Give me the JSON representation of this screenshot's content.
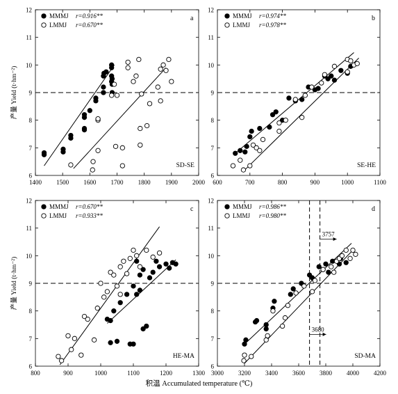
{
  "x_axis_title": "积温 Accumulated temperature (℃)",
  "chart_data": [
    {
      "type": "scatter",
      "panel": "a",
      "region": "SD-SE",
      "ylabel": "产量 Yield (t·hm⁻²)",
      "xlim": [
        1400,
        2000
      ],
      "ylim": [
        6,
        12
      ],
      "x_ticks": [
        "1400",
        "1500",
        "1600",
        "1700",
        "1800",
        "1900",
        "2000"
      ],
      "y_ticks": [
        "6",
        "7",
        "8",
        "9",
        "10",
        "11",
        "12"
      ],
      "reference_y": 9,
      "legend": [
        {
          "name": "MMMJ",
          "r_label": "r=0.916**",
          "marker": "filled"
        },
        {
          "name": "LMMJ",
          "r_label": "r=0.670**",
          "marker": "open"
        }
      ],
      "series": [
        {
          "name": "MMMJ",
          "marker": "filled",
          "points": [
            [
              1432,
              6.75
            ],
            [
              1432,
              6.82
            ],
            [
              1502,
              6.85
            ],
            [
              1502,
              6.95
            ],
            [
              1530,
              7.35
            ],
            [
              1530,
              7.45
            ],
            [
              1580,
              7.65
            ],
            [
              1580,
              7.7
            ],
            [
              1580,
              8.1
            ],
            [
              1580,
              8.2
            ],
            [
              1600,
              8.35
            ],
            [
              1622,
              8.7
            ],
            [
              1622,
              8.8
            ],
            [
              1650,
              9.0
            ],
            [
              1650,
              9.2
            ],
            [
              1650,
              9.6
            ],
            [
              1652,
              9.7
            ],
            [
              1660,
              9.75
            ],
            [
              1680,
              9.4
            ],
            [
              1680,
              9.6
            ],
            [
              1680,
              9.9
            ],
            [
              1680,
              10.0
            ],
            [
              1682,
              9.3
            ],
            [
              1682,
              9.0
            ],
            [
              1682,
              9.5
            ]
          ],
          "fit": [
            [
              1432,
              6.35
            ],
            [
              1690,
              10.0
            ]
          ]
        },
        {
          "name": "LMMJ",
          "marker": "open",
          "points": [
            [
              1530,
              6.38
            ],
            [
              1610,
              6.2
            ],
            [
              1612,
              6.5
            ],
            [
              1630,
              6.9
            ],
            [
              1630,
              8.0
            ],
            [
              1630,
              8.05
            ],
            [
              1680,
              8.9
            ],
            [
              1690,
              9.3
            ],
            [
              1695,
              7.05
            ],
            [
              1700,
              8.9
            ],
            [
              1720,
              6.35
            ],
            [
              1720,
              7.0
            ],
            [
              1740,
              9.9
            ],
            [
              1740,
              10.1
            ],
            [
              1760,
              9.4
            ],
            [
              1770,
              9.6
            ],
            [
              1780,
              10.2
            ],
            [
              1785,
              7.1
            ],
            [
              1785,
              7.7
            ],
            [
              1790,
              8.95
            ],
            [
              1810,
              7.8
            ],
            [
              1820,
              8.6
            ],
            [
              1850,
              9.2
            ],
            [
              1860,
              9.85
            ],
            [
              1860,
              8.7
            ],
            [
              1870,
              10.0
            ],
            [
              1880,
              9.8
            ],
            [
              1890,
              10.2
            ],
            [
              1900,
              9.4
            ]
          ],
          "fit": [
            [
              1540,
              6.25
            ],
            [
              1880,
              9.9
            ]
          ]
        }
      ]
    },
    {
      "type": "scatter",
      "panel": "b",
      "region": "SE-HE",
      "xlim": [
        600,
        1100
      ],
      "ylim": [
        6,
        12
      ],
      "x_ticks": [
        "600",
        "700",
        "800",
        "900",
        "1000",
        "1100"
      ],
      "y_ticks": [
        "6",
        "7",
        "8",
        "9",
        "10",
        "11",
        "12"
      ],
      "reference_y": 9,
      "legend": [
        {
          "name": "MMMJ",
          "r_label": "r=0.974**",
          "marker": "filled"
        },
        {
          "name": "LMMJ",
          "r_label": "r=0.978**",
          "marker": "open"
        }
      ],
      "series": [
        {
          "name": "MMMJ",
          "marker": "filled",
          "points": [
            [
              655,
              6.8
            ],
            [
              670,
              6.9
            ],
            [
              685,
              6.85
            ],
            [
              690,
              7.05
            ],
            [
              700,
              7.4
            ],
            [
              705,
              7.6
            ],
            [
              730,
              7.7
            ],
            [
              760,
              7.75
            ],
            [
              770,
              8.2
            ],
            [
              780,
              8.3
            ],
            [
              800,
              8.0
            ],
            [
              820,
              8.8
            ],
            [
              840,
              8.7
            ],
            [
              860,
              8.75
            ],
            [
              880,
              9.2
            ],
            [
              900,
              9.1
            ],
            [
              910,
              9.15
            ],
            [
              930,
              9.6
            ],
            [
              940,
              9.5
            ],
            [
              950,
              9.6
            ],
            [
              960,
              9.45
            ],
            [
              980,
              9.8
            ],
            [
              1000,
              9.7
            ],
            [
              1010,
              9.95
            ]
          ],
          "fit": [
            [
              650,
              6.75
            ],
            [
              1020,
              10.45
            ]
          ]
        },
        {
          "name": "LMMJ",
          "marker": "open",
          "points": [
            [
              648,
              6.35
            ],
            [
              670,
              6.55
            ],
            [
              680,
              6.2
            ],
            [
              700,
              6.35
            ],
            [
              710,
              7.1
            ],
            [
              720,
              7.0
            ],
            [
              730,
              6.9
            ],
            [
              740,
              7.3
            ],
            [
              790,
              7.6
            ],
            [
              790,
              7.9
            ],
            [
              810,
              8.0
            ],
            [
              840,
              8.75
            ],
            [
              860,
              8.1
            ],
            [
              870,
              8.9
            ],
            [
              890,
              9.2
            ],
            [
              920,
              9.35
            ],
            [
              930,
              9.65
            ],
            [
              960,
              9.95
            ],
            [
              1000,
              10.2
            ],
            [
              1010,
              10.15
            ],
            [
              1020,
              10.0
            ],
            [
              1030,
              10.05
            ],
            [
              1000,
              9.75
            ]
          ],
          "fit": [
            [
              680,
              6.15
            ],
            [
              1035,
              10.25
            ]
          ]
        }
      ]
    },
    {
      "type": "scatter",
      "panel": "c",
      "region": "HE-MA",
      "ylabel": "产量 Yield (t·hm⁻²)",
      "xlim": [
        800,
        1300
      ],
      "ylim": [
        6,
        12
      ],
      "x_ticks": [
        "800",
        "900",
        "1000",
        "1100",
        "1200",
        "1300"
      ],
      "y_ticks": [
        "6",
        "7",
        "8",
        "9",
        "10",
        "11",
        "12"
      ],
      "reference_y": 9,
      "legend": [
        {
          "name": "MMMJ",
          "r_label": "r=0.670**",
          "marker": "filled"
        },
        {
          "name": "LMMJ",
          "r_label": "r=0.933**",
          "marker": "open"
        }
      ],
      "series": [
        {
          "name": "MMMJ",
          "marker": "filled",
          "points": [
            [
              1020,
              7.7
            ],
            [
              1030,
              7.65
            ],
            [
              1030,
              6.85
            ],
            [
              1040,
              8.0
            ],
            [
              1050,
              6.9
            ],
            [
              1060,
              8.3
            ],
            [
              1080,
              8.6
            ],
            [
              1090,
              6.8
            ],
            [
              1100,
              6.8
            ],
            [
              1100,
              8.9
            ],
            [
              1110,
              8.6
            ],
            [
              1120,
              8.75
            ],
            [
              1130,
              9.5
            ],
            [
              1130,
              7.35
            ],
            [
              1140,
              7.45
            ],
            [
              1150,
              9.2
            ],
            [
              1160,
              9.4
            ],
            [
              1170,
              9.8
            ],
            [
              1180,
              9.6
            ],
            [
              1200,
              9.7
            ],
            [
              1210,
              9.55
            ],
            [
              1220,
              9.75
            ],
            [
              1230,
              9.7
            ],
            [
              1110,
              9.8
            ],
            [
              1120,
              9.3
            ]
          ],
          "fit": [
            [
              1020,
              7.55
            ],
            [
              1230,
              9.85
            ]
          ]
        },
        {
          "name": "LMMJ",
          "marker": "open",
          "points": [
            [
              870,
              6.35
            ],
            [
              880,
              6.2
            ],
            [
              900,
              7.1
            ],
            [
              910,
              6.6
            ],
            [
              920,
              7.0
            ],
            [
              940,
              6.4
            ],
            [
              950,
              7.8
            ],
            [
              960,
              7.7
            ],
            [
              980,
              6.95
            ],
            [
              990,
              8.1
            ],
            [
              1000,
              9.0
            ],
            [
              1010,
              8.5
            ],
            [
              1020,
              8.7
            ],
            [
              1030,
              9.4
            ],
            [
              1040,
              9.3
            ],
            [
              1050,
              8.9
            ],
            [
              1060,
              9.6
            ],
            [
              1070,
              9.8
            ],
            [
              1080,
              9.35
            ],
            [
              1090,
              9.9
            ],
            [
              1100,
              10.2
            ],
            [
              1110,
              10.0
            ],
            [
              1120,
              9.6
            ],
            [
              1140,
              10.2
            ],
            [
              1160,
              9.95
            ],
            [
              1180,
              10.1
            ],
            [
              1060,
              8.6
            ]
          ],
          "fit": [
            [
              875,
              6.05
            ],
            [
              1180,
              11.05
            ]
          ]
        }
      ]
    },
    {
      "type": "scatter",
      "panel": "d",
      "region": "SD-MA",
      "xlim": [
        3000,
        4200
      ],
      "ylim": [
        6,
        12
      ],
      "x_ticks": [
        "3000",
        "3200",
        "3400",
        "3600",
        "3800",
        "4000",
        "4200"
      ],
      "y_ticks": [
        "6",
        "7",
        "8",
        "9",
        "10",
        "11",
        "12"
      ],
      "reference_y": 9,
      "legend": [
        {
          "name": "MMMJ",
          "r_label": "r=0.986**",
          "marker": "filled"
        },
        {
          "name": "LMMJ",
          "r_label": "r=0.980**",
          "marker": "open"
        }
      ],
      "threshold_lines": [
        {
          "label": "3757",
          "y_label": 10.6
        },
        {
          "label": "3680",
          "y_label": 7.15
        }
      ],
      "series": [
        {
          "name": "MMMJ",
          "marker": "filled",
          "points": [
            [
              3200,
              6.8
            ],
            [
              3210,
              6.95
            ],
            [
              3280,
              7.6
            ],
            [
              3290,
              7.65
            ],
            [
              3360,
              7.35
            ],
            [
              3360,
              7.5
            ],
            [
              3410,
              8.1
            ],
            [
              3420,
              8.35
            ],
            [
              3540,
              8.6
            ],
            [
              3560,
              8.8
            ],
            [
              3620,
              9.0
            ],
            [
              3680,
              9.3
            ],
            [
              3700,
              9.2
            ],
            [
              3750,
              9.6
            ],
            [
              3780,
              9.5
            ],
            [
              3800,
              9.7
            ],
            [
              3850,
              9.8
            ],
            [
              3900,
              9.7
            ],
            [
              3910,
              9.9
            ],
            [
              3950,
              9.75
            ],
            [
              3820,
              9.4
            ]
          ],
          "fit": [
            [
              3190,
              6.75
            ],
            [
              3990,
              10.45
            ]
          ]
        },
        {
          "name": "LMMJ",
          "marker": "open",
          "points": [
            [
              3195,
              6.2
            ],
            [
              3200,
              6.4
            ],
            [
              3250,
              6.35
            ],
            [
              3360,
              6.95
            ],
            [
              3370,
              7.1
            ],
            [
              3410,
              8.0
            ],
            [
              3480,
              7.45
            ],
            [
              3500,
              7.75
            ],
            [
              3520,
              8.2
            ],
            [
              3580,
              8.65
            ],
            [
              3640,
              8.9
            ],
            [
              3700,
              8.7
            ],
            [
              3720,
              9.1
            ],
            [
              3780,
              9.5
            ],
            [
              3840,
              9.6
            ],
            [
              3860,
              9.4
            ],
            [
              3880,
              9.8
            ],
            [
              3900,
              9.9
            ],
            [
              3920,
              10.0
            ],
            [
              3950,
              10.2
            ],
            [
              3980,
              9.9
            ],
            [
              4000,
              10.2
            ],
            [
              4020,
              10.05
            ]
          ],
          "fit": [
            [
              3200,
              6.1
            ],
            [
              4000,
              10.2
            ]
          ]
        }
      ]
    }
  ]
}
